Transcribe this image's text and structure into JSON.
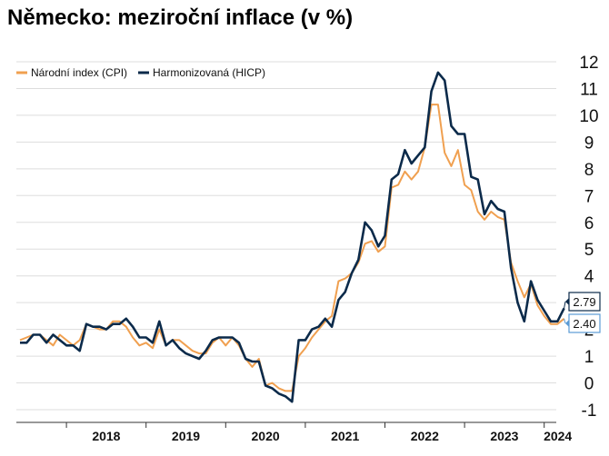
{
  "title": "Německo: meziroční inflace (v %)",
  "colors": {
    "cpi": "#F0A050",
    "hicp": "#0B2A4A",
    "grid": "#DDDDDD",
    "axis": "#333333"
  },
  "chart_data": {
    "type": "line",
    "title": "Německo: meziroční inflace (v %)",
    "xlabel": "",
    "ylabel": "",
    "ylim": [
      -1,
      12
    ],
    "yticks": [
      "-1",
      "0",
      "1",
      "2",
      "3",
      "4",
      "5",
      "6",
      "7",
      "8",
      "9",
      "10",
      "11",
      "12"
    ],
    "xticks": [
      "2018",
      "2019",
      "2020",
      "2021",
      "2022",
      "2023",
      "2024"
    ],
    "grid": true,
    "legend_position": "top-left",
    "x_start": "2017-06",
    "series": [
      {
        "name": "Národní index (CPI)",
        "color": "#F0A050",
        "values": [
          1.6,
          1.7,
          1.8,
          1.8,
          1.6,
          1.4,
          1.8,
          1.6,
          1.4,
          1.6,
          2.2,
          2.1,
          2.0,
          2.0,
          2.3,
          2.3,
          2.1,
          1.7,
          1.4,
          1.5,
          1.3,
          2.0,
          1.4,
          1.6,
          1.6,
          1.4,
          1.2,
          1.1,
          1.1,
          1.5,
          1.7,
          1.4,
          1.7,
          1.4,
          0.9,
          0.6,
          0.9,
          -0.1,
          0.0,
          -0.2,
          -0.3,
          -0.3,
          1.0,
          1.3,
          1.7,
          2.0,
          2.3,
          2.5,
          3.8,
          3.9,
          4.1,
          4.5,
          5.2,
          5.3,
          4.9,
          5.1,
          7.3,
          7.4,
          7.9,
          7.6,
          7.9,
          8.8,
          10.4,
          10.4,
          8.6,
          8.1,
          8.7,
          7.4,
          7.2,
          6.4,
          6.1,
          6.4,
          6.2,
          6.1,
          4.5,
          3.8,
          3.2,
          3.7,
          2.9,
          2.5,
          2.2,
          2.2,
          2.4
        ],
        "last_value_label": "2.40"
      },
      {
        "name": "Harmonizovaná (HICP)",
        "color": "#0B2A4A",
        "values": [
          1.5,
          1.5,
          1.8,
          1.8,
          1.5,
          1.8,
          1.6,
          1.4,
          1.4,
          1.2,
          2.2,
          2.1,
          2.1,
          2.0,
          2.2,
          2.2,
          2.4,
          2.1,
          1.7,
          1.7,
          1.5,
          2.3,
          1.4,
          1.6,
          1.3,
          1.1,
          1.0,
          0.9,
          1.2,
          1.6,
          1.7,
          1.7,
          1.7,
          1.5,
          0.9,
          0.8,
          0.8,
          -0.1,
          -0.2,
          -0.4,
          -0.5,
          -0.7,
          1.6,
          1.6,
          2.0,
          2.1,
          2.4,
          2.1,
          3.1,
          3.4,
          4.1,
          4.6,
          6.0,
          5.7,
          5.1,
          5.5,
          7.6,
          7.8,
          8.7,
          8.2,
          8.5,
          8.8,
          10.9,
          11.6,
          11.3,
          9.6,
          9.3,
          9.3,
          7.7,
          7.6,
          6.3,
          6.8,
          6.5,
          6.4,
          4.3,
          3.0,
          2.3,
          3.8,
          3.1,
          2.7,
          2.3,
          2.3,
          2.79
        ],
        "last_value_label": "2.79"
      }
    ]
  }
}
